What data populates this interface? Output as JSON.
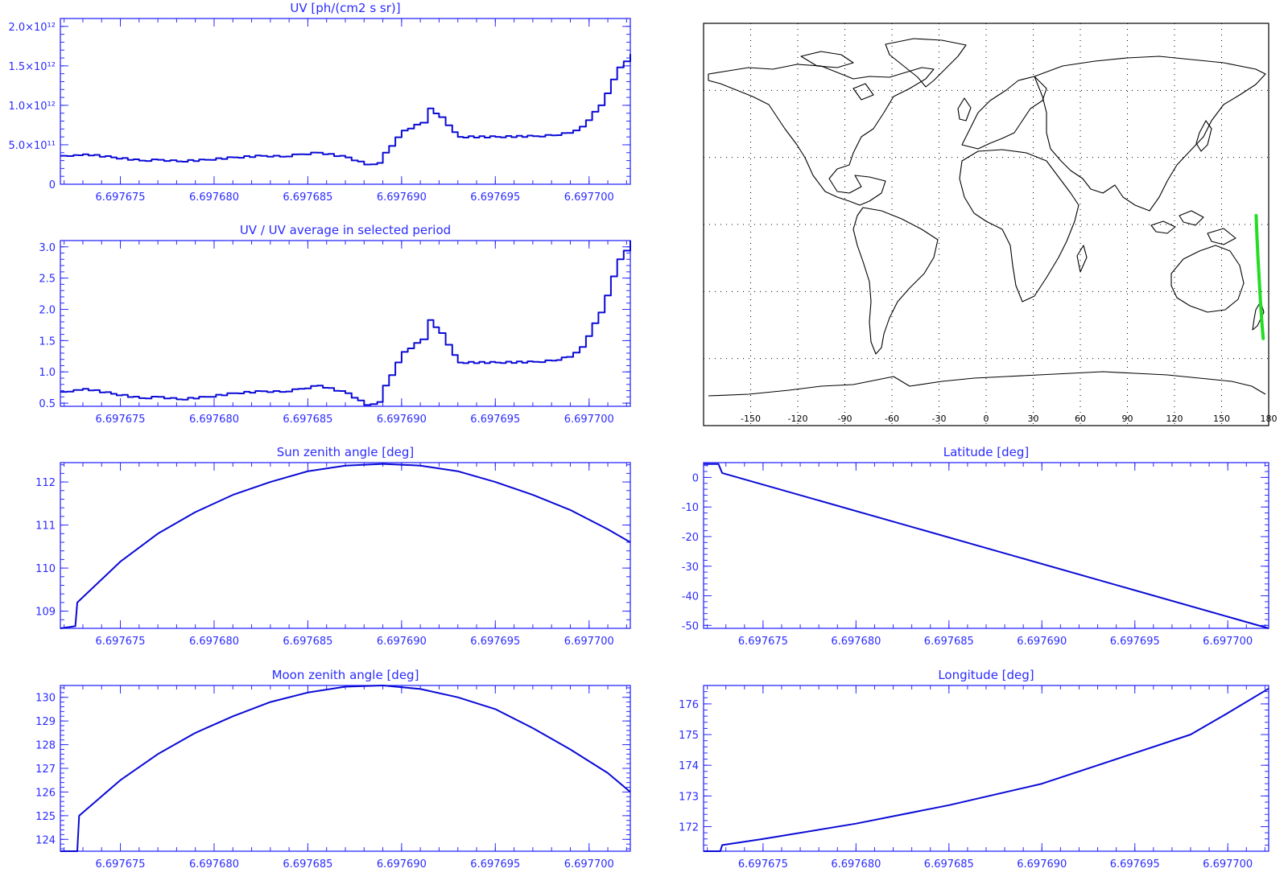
{
  "colors": {
    "axis": "#2b2bff",
    "line": "#0a0ad6",
    "map_line": "#000000",
    "map_grid": "#000000",
    "track": "#22dd22"
  },
  "chart_data": [
    {
      "id": "uv",
      "type": "line",
      "step": true,
      "title": "UV [ph/(cm2 s sr)]",
      "xlabel": "",
      "ylabel": "",
      "xlim": [
        6.6976718,
        6.6977022
      ],
      "ylim": [
        0,
        2100000000000.0
      ],
      "xticks": [
        6.697675,
        6.69768,
        6.697685,
        6.69769,
        6.697695,
        6.6977
      ],
      "xtick_labels": [
        "6.697675",
        "6.697680",
        "6.697685",
        "6.697690",
        "6.697695",
        "6.697700"
      ],
      "yticks": [
        0,
        500000000000.0,
        1000000000000.0,
        1500000000000.0,
        2000000000000.0
      ],
      "ytick_labels": [
        "0",
        "5.0×10¹¹",
        "1.0×10¹²",
        "1.5×10¹²",
        "2.0×10¹²"
      ],
      "x": [
        6.6976718,
        6.6976725,
        6.697673,
        6.6976745,
        6.697676,
        6.697677,
        6.697678,
        6.6976795,
        6.697681,
        6.6976825,
        6.6976835,
        6.6976845,
        6.6976855,
        6.697687,
        6.697688,
        6.6976887,
        6.697689,
        6.69769,
        6.697691,
        6.6976914,
        6.697692,
        6.6976927,
        6.697693,
        6.697695,
        6.697697,
        6.697698,
        6.6976988,
        6.6976995,
        6.6977005,
        6.6977015,
        6.6977022
      ],
      "y": [
        360000000000.0,
        370000000000.0,
        380000000000.0,
        340000000000.0,
        300000000000.0,
        310000000000.0,
        290000000000.0,
        310000000000.0,
        340000000000.0,
        360000000000.0,
        350000000000.0,
        380000000000.0,
        400000000000.0,
        340000000000.0,
        250000000000.0,
        270000000000.0,
        400000000000.0,
        680000000000.0,
        780000000000.0,
        960000000000.0,
        850000000000.0,
        660000000000.0,
        600000000000.0,
        600000000000.0,
        610000000000.0,
        620000000000.0,
        650000000000.0,
        730000000000.0,
        1000000000000.0,
        1480000000000.0,
        1650000000000.0
      ]
    },
    {
      "id": "uvratio",
      "type": "line",
      "step": true,
      "title": "UV / UV average in selected period",
      "xlabel": "",
      "ylabel": "",
      "xlim": [
        6.6976718,
        6.6977022
      ],
      "ylim": [
        0.45,
        3.1
      ],
      "xticks": [
        6.697675,
        6.69768,
        6.697685,
        6.69769,
        6.697695,
        6.6977
      ],
      "xtick_labels": [
        "6.697675",
        "6.697680",
        "6.697685",
        "6.697690",
        "6.697695",
        "6.697700"
      ],
      "yticks": [
        0.5,
        1.0,
        1.5,
        2.0,
        2.5,
        3.0
      ],
      "ytick_labels": [
        "0.5",
        "1.0",
        "1.5",
        "2.0",
        "2.5",
        "3.0"
      ],
      "x": [
        6.6976718,
        6.6976725,
        6.697673,
        6.6976745,
        6.697676,
        6.697677,
        6.697678,
        6.6976795,
        6.697681,
        6.6976825,
        6.6976835,
        6.6976845,
        6.6976855,
        6.697687,
        6.697688,
        6.6976887,
        6.697689,
        6.69769,
        6.697691,
        6.6976914,
        6.697692,
        6.6976927,
        6.697693,
        6.697695,
        6.697697,
        6.697698,
        6.6976988,
        6.6976995,
        6.6977005,
        6.6977015,
        6.6977022
      ],
      "y": [
        0.68,
        0.71,
        0.73,
        0.65,
        0.58,
        0.6,
        0.56,
        0.6,
        0.66,
        0.69,
        0.68,
        0.73,
        0.78,
        0.66,
        0.47,
        0.52,
        0.78,
        1.32,
        1.52,
        1.83,
        1.62,
        1.27,
        1.15,
        1.15,
        1.16,
        1.18,
        1.24,
        1.4,
        1.95,
        2.8,
        3.1
      ]
    },
    {
      "id": "sza",
      "type": "line",
      "step": false,
      "title": "Sun zenith angle [deg]",
      "xlabel": "",
      "ylabel": "",
      "xlim": [
        6.6976718,
        6.6977022
      ],
      "ylim": [
        108.6,
        112.45
      ],
      "xticks": [
        6.697675,
        6.69768,
        6.697685,
        6.69769,
        6.697695,
        6.6977
      ],
      "xtick_labels": [
        "6.697675",
        "6.697680",
        "6.697685",
        "6.697690",
        "6.697695",
        "6.697700"
      ],
      "yticks": [
        109,
        110,
        111,
        112
      ],
      "ytick_labels": [
        "109",
        "110",
        "111",
        "112"
      ],
      "x": [
        6.6976718,
        6.6976726,
        6.6976727,
        6.697675,
        6.697677,
        6.697679,
        6.697681,
        6.697683,
        6.697685,
        6.697687,
        6.697689,
        6.697691,
        6.697693,
        6.697695,
        6.697697,
        6.697699,
        6.697701,
        6.6977022
      ],
      "y": [
        108.6,
        108.65,
        109.2,
        110.15,
        110.8,
        111.3,
        111.7,
        112.0,
        112.25,
        112.38,
        112.42,
        112.38,
        112.25,
        112.0,
        111.7,
        111.35,
        110.9,
        110.6
      ]
    },
    {
      "id": "moon",
      "type": "line",
      "step": false,
      "title": "Moon zenith angle [deg]",
      "xlabel": "",
      "ylabel": "",
      "xlim": [
        6.6976718,
        6.6977022
      ],
      "ylim": [
        123.5,
        130.5
      ],
      "xticks": [
        6.697675,
        6.69768,
        6.697685,
        6.69769,
        6.697695,
        6.6977
      ],
      "xtick_labels": [
        "6.697675",
        "6.697680",
        "6.697685",
        "6.697690",
        "6.697695",
        "6.697700"
      ],
      "yticks": [
        124,
        125,
        126,
        127,
        128,
        129,
        130
      ],
      "ytick_labels": [
        "124",
        "125",
        "126",
        "127",
        "128",
        "129",
        "130"
      ],
      "x": [
        6.6976718,
        6.6976727,
        6.6976728,
        6.697675,
        6.697677,
        6.697679,
        6.697681,
        6.697683,
        6.697685,
        6.697687,
        6.697689,
        6.697691,
        6.697693,
        6.697695,
        6.697697,
        6.697699,
        6.697701,
        6.6977022
      ],
      "y": [
        123.5,
        123.5,
        125.0,
        126.5,
        127.6,
        128.5,
        129.2,
        129.8,
        130.2,
        130.45,
        130.5,
        130.35,
        130.0,
        129.5,
        128.7,
        127.8,
        126.8,
        126.0
      ]
    },
    {
      "id": "lat",
      "type": "line",
      "step": false,
      "title": "Latitude [deg]",
      "xlabel": "",
      "ylabel": "",
      "xlim": [
        6.6976718,
        6.6977022
      ],
      "ylim": [
        -51,
        5
      ],
      "xticks": [
        6.697675,
        6.69768,
        6.697685,
        6.69769,
        6.697695,
        6.6977
      ],
      "xtick_labels": [
        "6.697675",
        "6.697680",
        "6.697685",
        "6.697690",
        "6.697695",
        "6.697700"
      ],
      "yticks": [
        -50,
        -40,
        -30,
        -20,
        -10,
        0
      ],
      "ytick_labels": [
        "-50",
        "-40",
        "-30",
        "-20",
        "-10",
        "0"
      ],
      "x": [
        6.6976718,
        6.6976726,
        6.6976728,
        6.6977022
      ],
      "y": [
        4.5,
        4.5,
        1.5,
        -51
      ]
    },
    {
      "id": "lon",
      "type": "line",
      "step": false,
      "title": "Longitude [deg]",
      "xlabel": "",
      "ylabel": "",
      "xlim": [
        6.6976718,
        6.6977022
      ],
      "ylim": [
        171.2,
        176.6
      ],
      "xticks": [
        6.697675,
        6.69768,
        6.697685,
        6.69769,
        6.697695,
        6.6977
      ],
      "xtick_labels": [
        "6.697675",
        "6.697680",
        "6.697685",
        "6.697690",
        "6.697695",
        "6.697700"
      ],
      "yticks": [
        172,
        173,
        174,
        175,
        176
      ],
      "ytick_labels": [
        "172",
        "173",
        "174",
        "175",
        "176"
      ],
      "x": [
        6.6976718,
        6.6976727,
        6.6976728,
        6.697675,
        6.69768,
        6.697685,
        6.69769,
        6.697695,
        6.697698,
        6.6977,
        6.6977022
      ],
      "y": [
        171.2,
        171.2,
        171.4,
        171.6,
        172.1,
        172.7,
        173.4,
        174.4,
        175.0,
        175.7,
        176.5
      ]
    },
    {
      "id": "map",
      "type": "map",
      "title": "",
      "xlim": [
        -180,
        180
      ],
      "ylim": [
        -90,
        90
      ],
      "xticks": [
        -150,
        -120,
        -90,
        -60,
        -30,
        0,
        30,
        60,
        90,
        120,
        150,
        180
      ],
      "xtick_labels": [
        "-150",
        "-120",
        "-90",
        "-60",
        "-30",
        "0",
        "30",
        "60",
        "90",
        "120",
        "150",
        "180"
      ],
      "grid": true,
      "track": {
        "lon": [
          172.0,
          172.5,
          173.2,
          174.0,
          174.8,
          175.6,
          176.5
        ],
        "lat": [
          4.0,
          -5.0,
          -15.0,
          -25.0,
          -35.0,
          -43.0,
          -51.0
        ]
      }
    }
  ]
}
